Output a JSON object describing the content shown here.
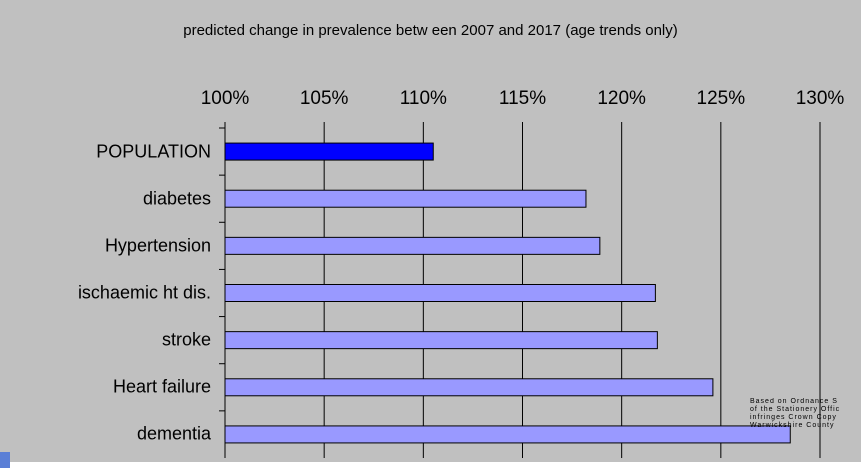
{
  "chart_data": {
    "type": "bar",
    "orientation": "horizontal",
    "title": "predicted change in prevalence betw een 2007 and 2017 (age trends only)",
    "categories": [
      "POPULATION",
      "diabetes",
      "Hypertension",
      "ischaemic ht dis.",
      "stroke",
      "Heart failure",
      "dementia"
    ],
    "values": [
      110.5,
      118.2,
      118.9,
      121.7,
      121.8,
      124.6,
      128.5
    ],
    "unit": "%",
    "xlim": [
      100,
      130
    ],
    "xticks": [
      "100%",
      "105%",
      "110%",
      "115%",
      "120%",
      "125%",
      "130%"
    ],
    "xtick_values": [
      100,
      105,
      110,
      115,
      120,
      125,
      130
    ],
    "xlabel": "",
    "ylabel": "",
    "grid": "vertical",
    "colors": {
      "highlight": "#0000ff",
      "default": "#9999ff",
      "background": "#c0c0c0",
      "gridline": "#000000"
    }
  },
  "attribution": "Based on Ordnance S\nof the Stationery Offic\ninfringes Crown Copy\nWarwickshire County"
}
